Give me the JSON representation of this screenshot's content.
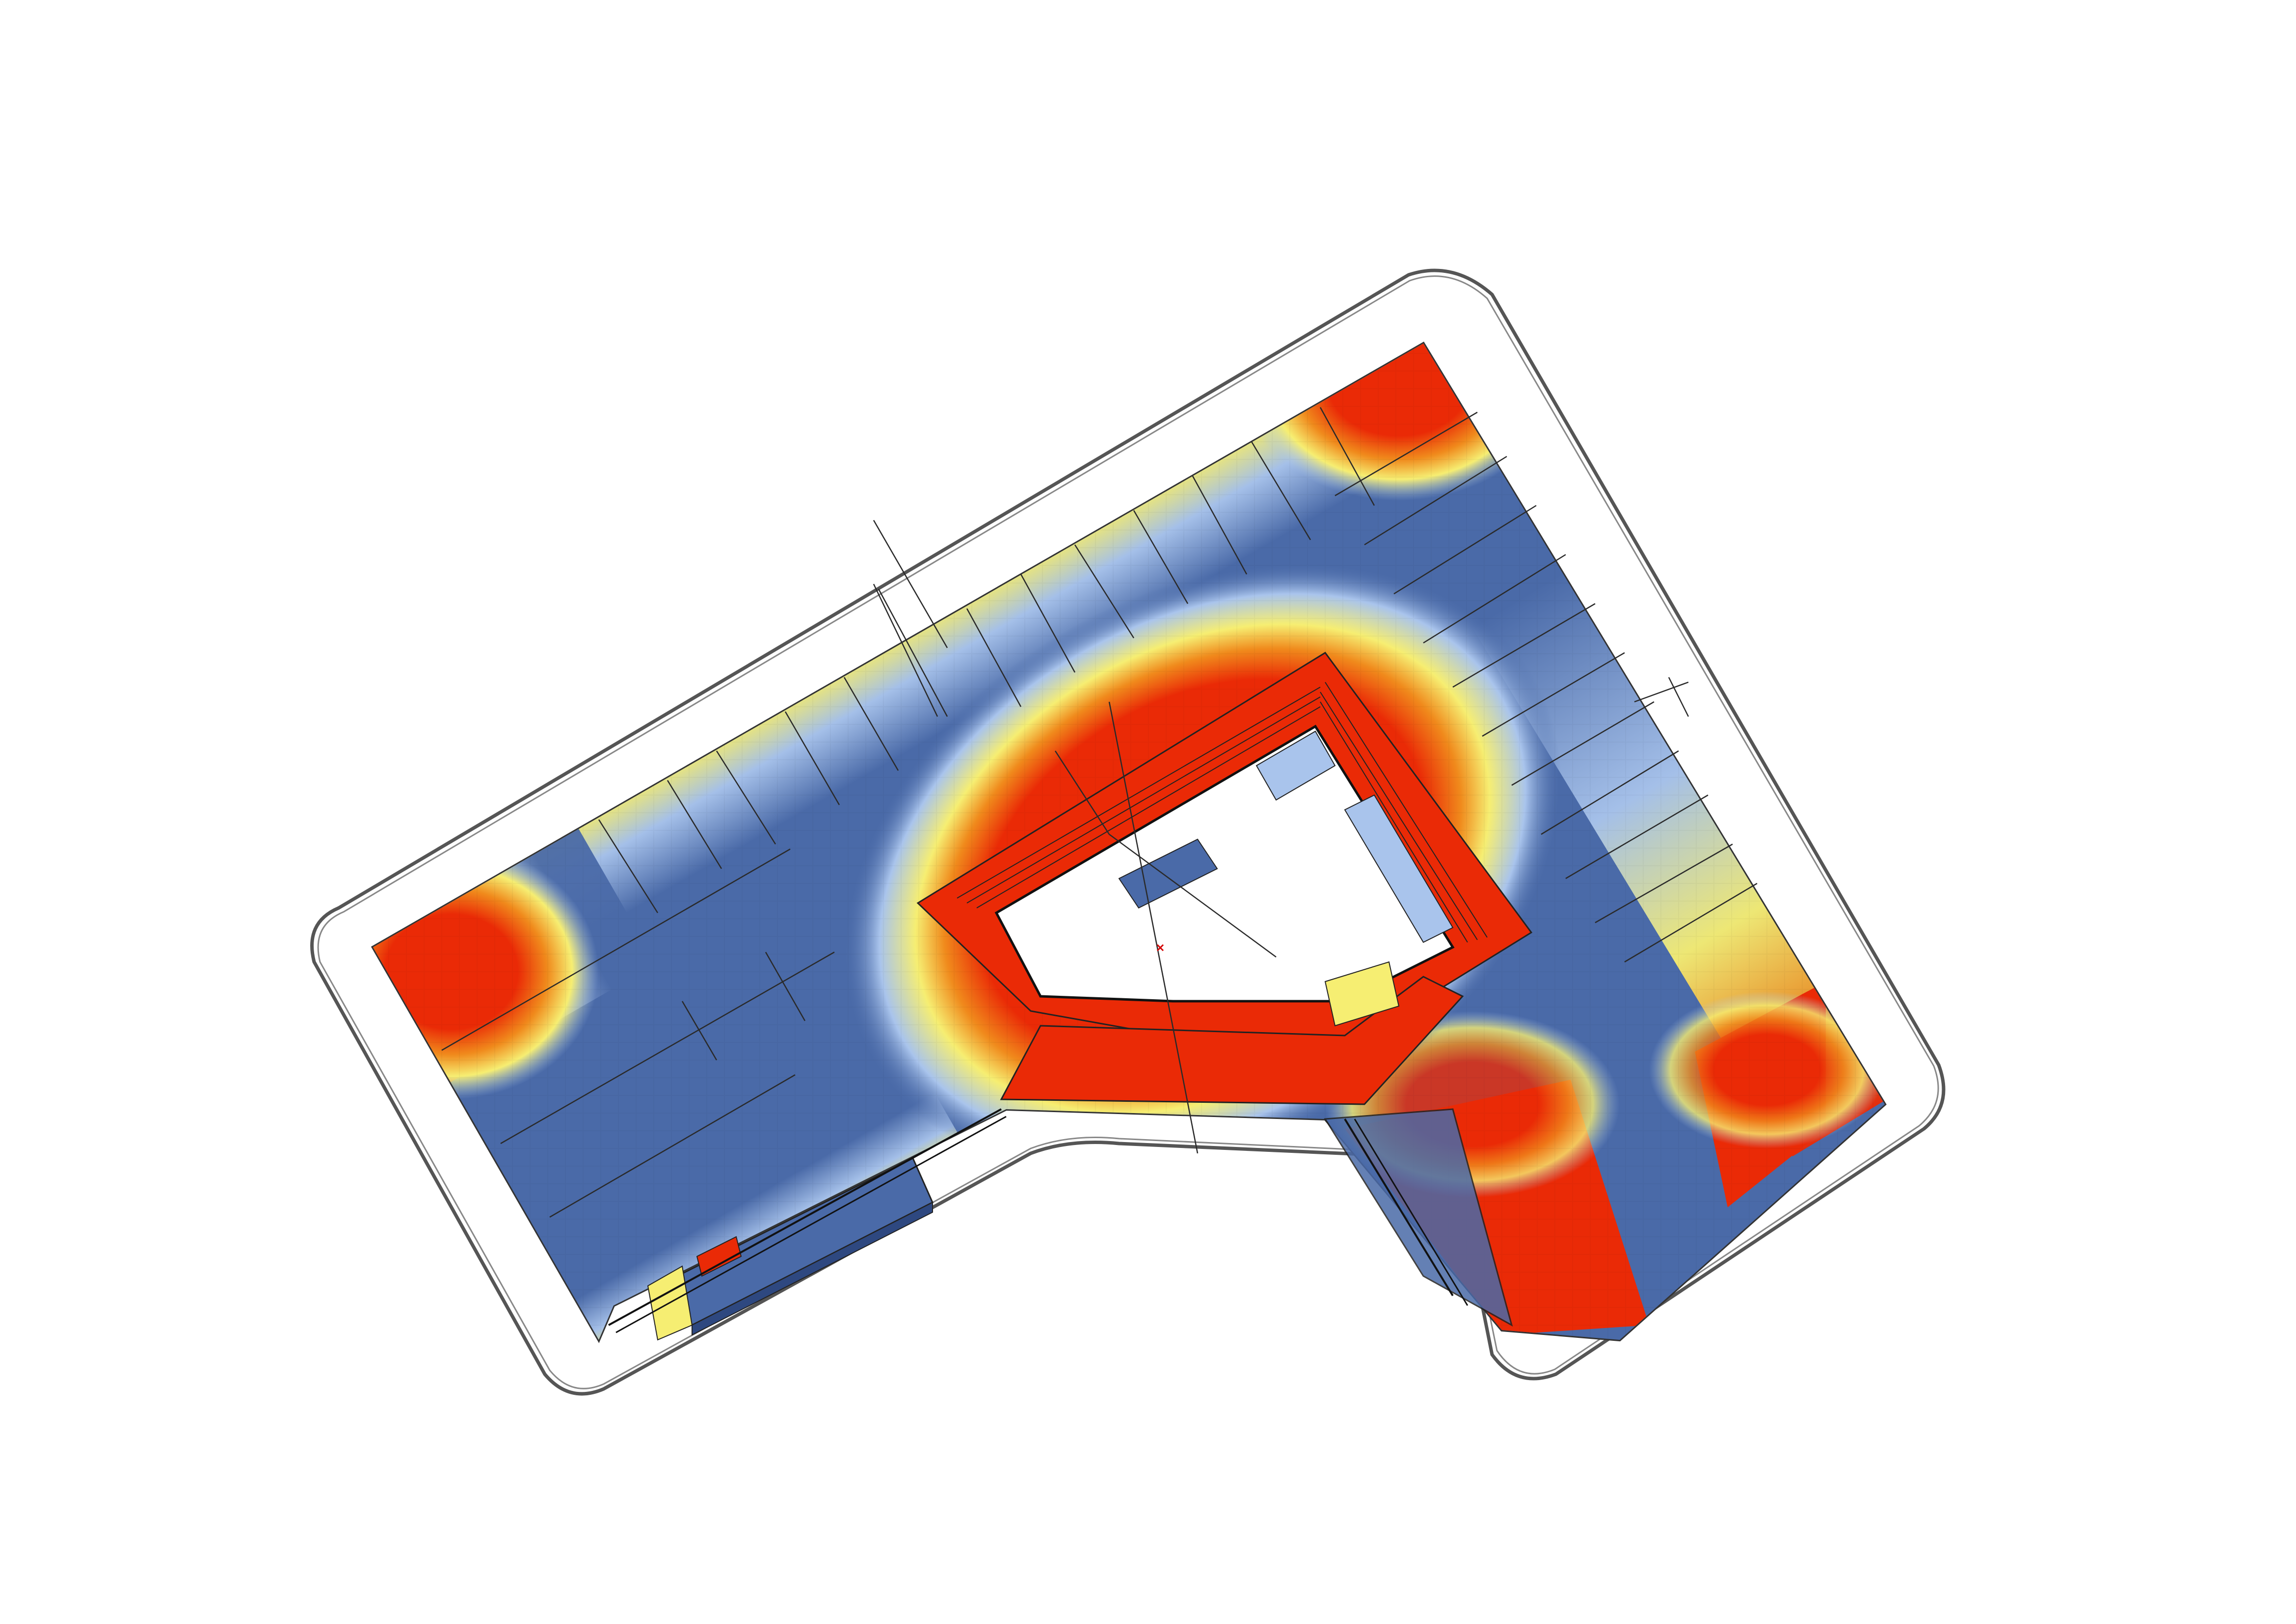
{
  "diagram": {
    "kind": "floor-plan-heatmap",
    "text_labels": [],
    "colors": {
      "background": "#ffffff",
      "cold": "#4a6aa8",
      "cool": "#a9c4ec",
      "neutral": "#f6ee72",
      "warm": "#f08a1c",
      "hot": "#ea2a06",
      "outline": "#444444",
      "marker": "#d40000"
    },
    "legend": null,
    "elements": [
      "site-boundary",
      "building-outline",
      "heat-bands",
      "courtyard",
      "room-partitions",
      "courtyard-balconies",
      "lower-annex",
      "origin-marker"
    ]
  }
}
